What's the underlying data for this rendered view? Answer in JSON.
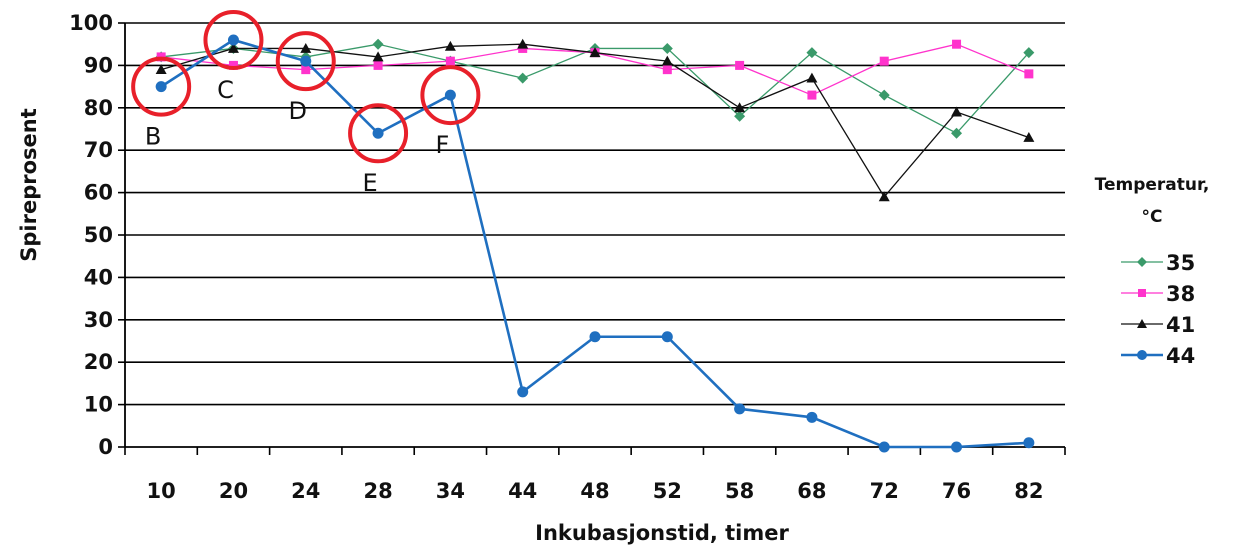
{
  "chart_data": {
    "type": "line",
    "xlabel": "Inkubasjonstid, timer",
    "ylabel": "Spireprosent",
    "categories": [
      "10",
      "20",
      "24",
      "28",
      "34",
      "44",
      "48",
      "52",
      "58",
      "68",
      "72",
      "76",
      "82"
    ],
    "ylim": [
      0,
      100
    ],
    "yticks": [
      0,
      10,
      20,
      30,
      40,
      50,
      60,
      70,
      80,
      90,
      100
    ],
    "grid": true,
    "legend": {
      "title_line1": "Temperatur,",
      "title_line2": "°C",
      "placement": "right"
    },
    "series": [
      {
        "name": "35",
        "color": "#3a9a6a",
        "marker": "diamond",
        "values": [
          92,
          94,
          92,
          95,
          91,
          87,
          94,
          94,
          78,
          93,
          83,
          74,
          93
        ]
      },
      {
        "name": "38",
        "color": "#ff33cc",
        "marker": "square",
        "values": [
          92,
          90,
          89,
          90,
          91,
          94,
          93,
          89,
          90,
          83,
          91,
          95,
          88
        ]
      },
      {
        "name": "41",
        "color": "#111111",
        "marker": "triangle",
        "values": [
          89,
          94,
          94,
          92,
          94.5,
          95,
          93,
          91,
          80,
          87,
          59,
          79,
          73
        ]
      },
      {
        "name": "44",
        "color": "#1f6fc0",
        "marker": "circle",
        "values": [
          85,
          96,
          91,
          74,
          83,
          13,
          26,
          26,
          9,
          7,
          0,
          0,
          1
        ]
      }
    ],
    "annotations": [
      {
        "label": "B",
        "category": "10",
        "value": 85
      },
      {
        "label": "C",
        "category": "20",
        "value": 96
      },
      {
        "label": "D",
        "category": "24",
        "value": 91
      },
      {
        "label": "E",
        "category": "28",
        "value": 74
      },
      {
        "label": "F",
        "category": "34",
        "value": 83
      }
    ],
    "annotation_color": "#e8202a"
  }
}
